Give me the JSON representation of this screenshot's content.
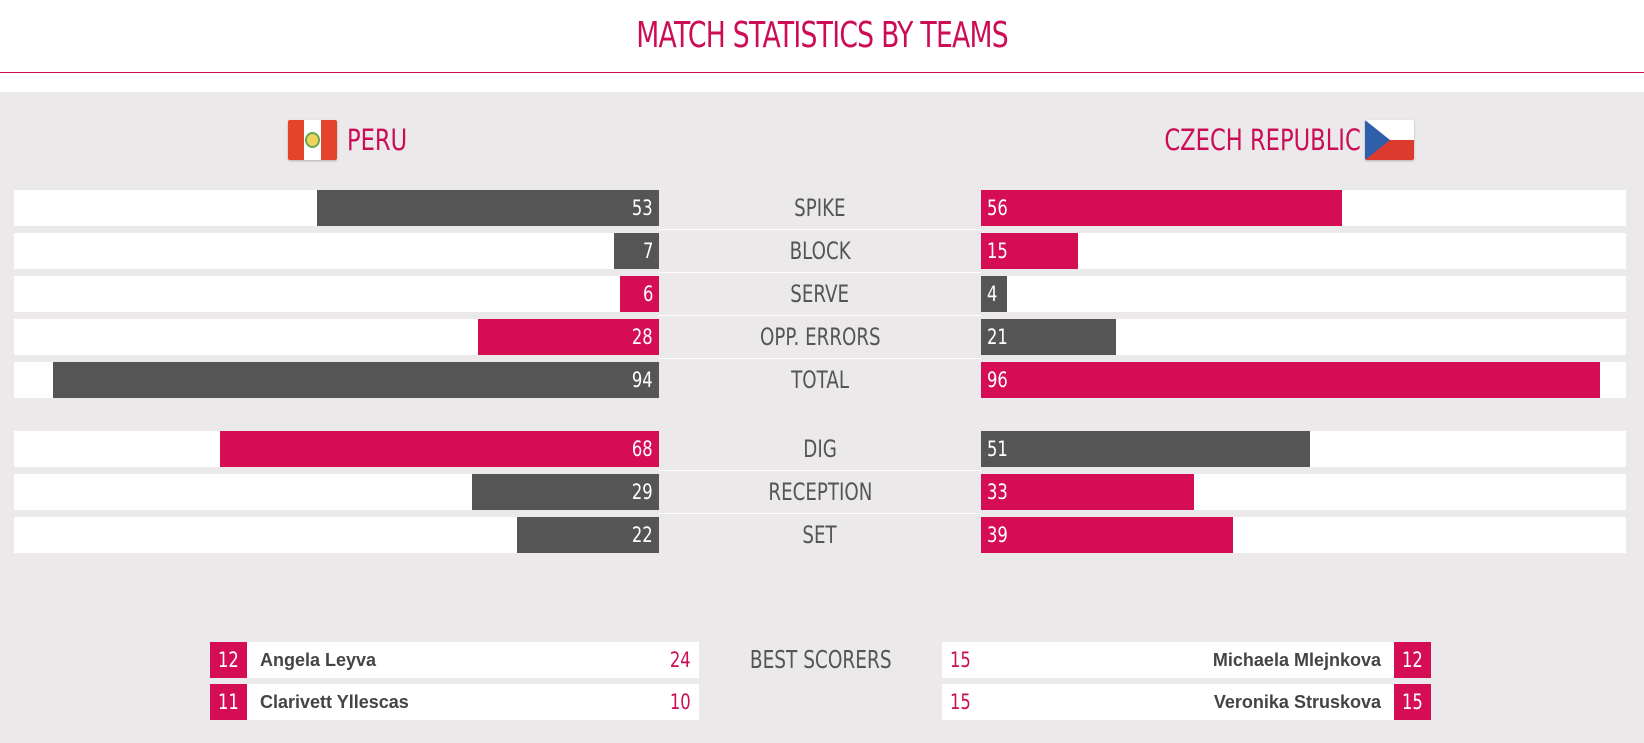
{
  "title": "MATCH STATISTICS BY TEAMS",
  "teams": {
    "left": {
      "name": "PERU",
      "flag_icon": "peru-flag-icon"
    },
    "right": {
      "name": "CZECH REPUBLIC",
      "flag_icon": "czech-flag-icon"
    }
  },
  "colors": {
    "accent": "#d40d55",
    "dark_bar": "#555555",
    "panel_bg": "#ebe9ea"
  },
  "scale_max": 100,
  "stats": [
    {
      "label": "SPIKE",
      "left": "53",
      "right": "56",
      "left_color": "dark",
      "right_color": "pink"
    },
    {
      "label": "BLOCK",
      "left": "7",
      "right": "15",
      "left_color": "dark",
      "right_color": "pink"
    },
    {
      "label": "SERVE",
      "left": "6",
      "right": "4",
      "left_color": "pink",
      "right_color": "dark"
    },
    {
      "label": "OPP. ERRORS",
      "left": "28",
      "right": "21",
      "left_color": "pink",
      "right_color": "dark"
    },
    {
      "label": "TOTAL",
      "left": "94",
      "right": "96",
      "left_color": "dark",
      "right_color": "pink"
    },
    {
      "label": "DIG",
      "left": "68",
      "right": "51",
      "left_color": "pink",
      "right_color": "dark"
    },
    {
      "label": "RECEPTION",
      "left": "29",
      "right": "33",
      "left_color": "dark",
      "right_color": "pink"
    },
    {
      "label": "SET",
      "left": "22",
      "right": "39",
      "left_color": "dark",
      "right_color": "pink"
    }
  ],
  "best_scorers": {
    "label": "BEST SCORERS",
    "left": [
      {
        "number": "12",
        "name": "Angela Leyva",
        "points": "24"
      },
      {
        "number": "11",
        "name": "Clarivett Yllescas",
        "points": "10"
      }
    ],
    "right": [
      {
        "number": "12",
        "name": "Michaela Mlejnkova",
        "points": "15"
      },
      {
        "number": "15",
        "name": "Veronika Struskova",
        "points": "15"
      }
    ]
  }
}
